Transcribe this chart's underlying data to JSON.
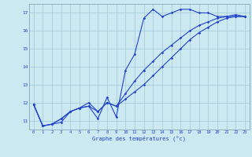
{
  "title": "",
  "xlabel": "Graphe des températures (°c)",
  "ylabel": "",
  "bg_color": "#cce8f0",
  "grid_color": "#a0c8d8",
  "line_color": "#2244cc",
  "x_hours": [
    0,
    1,
    2,
    3,
    4,
    5,
    6,
    7,
    8,
    9,
    10,
    11,
    12,
    13,
    14,
    15,
    16,
    17,
    18,
    19,
    20,
    21,
    22,
    23
  ],
  "line1": [
    11.9,
    10.7,
    10.8,
    10.9,
    11.5,
    11.7,
    11.8,
    11.1,
    12.3,
    11.2,
    13.8,
    14.7,
    16.7,
    17.2,
    16.8,
    17.0,
    17.2,
    17.2,
    17.0,
    17.0,
    16.8,
    16.8,
    16.8,
    16.8
  ],
  "line2": [
    11.9,
    10.7,
    10.8,
    11.1,
    11.5,
    11.7,
    11.8,
    11.5,
    12.0,
    11.8,
    12.5,
    13.2,
    13.8,
    14.3,
    14.8,
    15.2,
    15.6,
    16.0,
    16.3,
    16.5,
    16.7,
    16.8,
    16.9,
    16.8
  ],
  "line3": [
    11.9,
    10.7,
    10.8,
    11.1,
    11.5,
    11.7,
    12.0,
    11.5,
    12.0,
    11.8,
    12.2,
    12.6,
    13.0,
    13.5,
    14.0,
    14.5,
    15.0,
    15.5,
    15.9,
    16.2,
    16.5,
    16.7,
    16.8,
    16.8
  ],
  "ylim": [
    10.5,
    17.5
  ],
  "yticks": [
    11,
    12,
    13,
    14,
    15,
    16,
    17
  ],
  "xlim": [
    -0.5,
    23.5
  ],
  "xticks": [
    0,
    1,
    2,
    3,
    4,
    5,
    6,
    7,
    8,
    9,
    10,
    11,
    12,
    13,
    14,
    15,
    16,
    17,
    18,
    19,
    20,
    21,
    22,
    23
  ]
}
